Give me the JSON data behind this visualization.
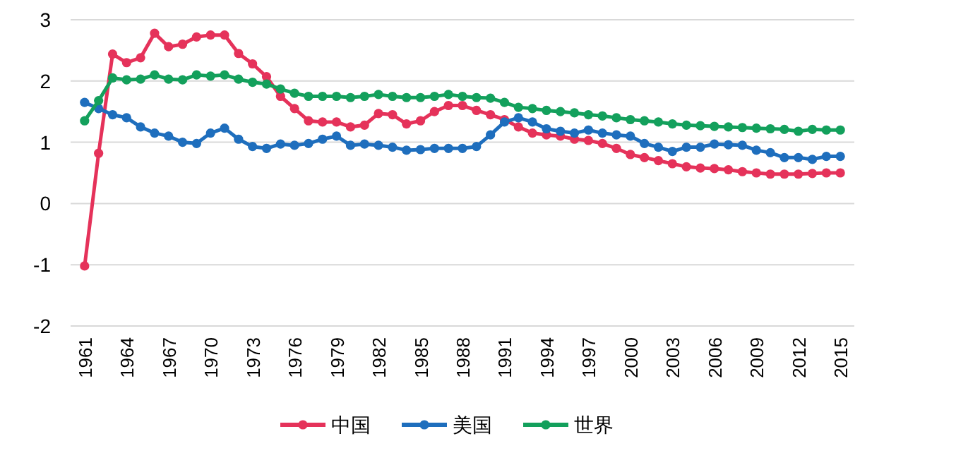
{
  "chart_data": {
    "type": "line",
    "x": [
      1961,
      1962,
      1963,
      1964,
      1965,
      1966,
      1967,
      1968,
      1969,
      1970,
      1971,
      1972,
      1973,
      1974,
      1975,
      1976,
      1977,
      1978,
      1979,
      1980,
      1981,
      1982,
      1983,
      1984,
      1985,
      1986,
      1987,
      1988,
      1989,
      1990,
      1991,
      1992,
      1993,
      1994,
      1995,
      1996,
      1997,
      1998,
      1999,
      2000,
      2001,
      2002,
      2003,
      2004,
      2005,
      2006,
      2007,
      2008,
      2009,
      2010,
      2011,
      2012,
      2013,
      2014,
      2015
    ],
    "series": [
      {
        "name": "中国",
        "color": "#e5325a",
        "values": [
          -1.02,
          0.82,
          2.44,
          2.3,
          2.38,
          2.78,
          2.56,
          2.6,
          2.72,
          2.75,
          2.75,
          2.45,
          2.28,
          2.07,
          1.75,
          1.55,
          1.35,
          1.33,
          1.33,
          1.25,
          1.28,
          1.47,
          1.45,
          1.3,
          1.35,
          1.5,
          1.6,
          1.6,
          1.52,
          1.45,
          1.37,
          1.25,
          1.15,
          1.12,
          1.1,
          1.05,
          1.03,
          0.98,
          0.9,
          0.8,
          0.75,
          0.7,
          0.65,
          0.6,
          0.58,
          0.57,
          0.55,
          0.52,
          0.5,
          0.48,
          0.48,
          0.48,
          0.49,
          0.5,
          0.5
        ]
      },
      {
        "name": "美国",
        "color": "#1e6ebd",
        "values": [
          1.65,
          1.55,
          1.45,
          1.4,
          1.25,
          1.15,
          1.1,
          1.0,
          0.98,
          1.15,
          1.23,
          1.05,
          0.93,
          0.9,
          0.97,
          0.95,
          0.98,
          1.05,
          1.1,
          0.95,
          0.97,
          0.95,
          0.92,
          0.87,
          0.88,
          0.9,
          0.9,
          0.9,
          0.93,
          1.12,
          1.33,
          1.4,
          1.33,
          1.22,
          1.18,
          1.15,
          1.2,
          1.15,
          1.12,
          1.1,
          0.98,
          0.92,
          0.85,
          0.92,
          0.92,
          0.97,
          0.96,
          0.95,
          0.87,
          0.83,
          0.75,
          0.75,
          0.72,
          0.77,
          0.77
        ]
      },
      {
        "name": "世界",
        "color": "#13a05c",
        "values": [
          1.35,
          1.68,
          2.05,
          2.02,
          2.03,
          2.1,
          2.03,
          2.02,
          2.1,
          2.08,
          2.1,
          2.03,
          1.98,
          1.95,
          1.87,
          1.8,
          1.75,
          1.75,
          1.75,
          1.73,
          1.75,
          1.78,
          1.75,
          1.73,
          1.73,
          1.75,
          1.78,
          1.75,
          1.73,
          1.72,
          1.65,
          1.57,
          1.55,
          1.52,
          1.5,
          1.48,
          1.45,
          1.43,
          1.4,
          1.37,
          1.35,
          1.33,
          1.3,
          1.28,
          1.27,
          1.26,
          1.25,
          1.24,
          1.23,
          1.22,
          1.21,
          1.18,
          1.21,
          1.2,
          1.2
        ]
      }
    ],
    "xlim": [
      1960,
      2016
    ],
    "xticks": [
      1961,
      1964,
      1967,
      1970,
      1973,
      1976,
      1979,
      1982,
      1985,
      1988,
      1991,
      1994,
      1997,
      2000,
      2003,
      2006,
      2009,
      2012,
      2015
    ],
    "ylim": [
      -2,
      3
    ],
    "yticks": [
      -2,
      -1,
      0,
      1,
      2,
      3
    ],
    "grid": "y",
    "legend": "bottom",
    "marker": "circle",
    "line_style": "solid"
  }
}
